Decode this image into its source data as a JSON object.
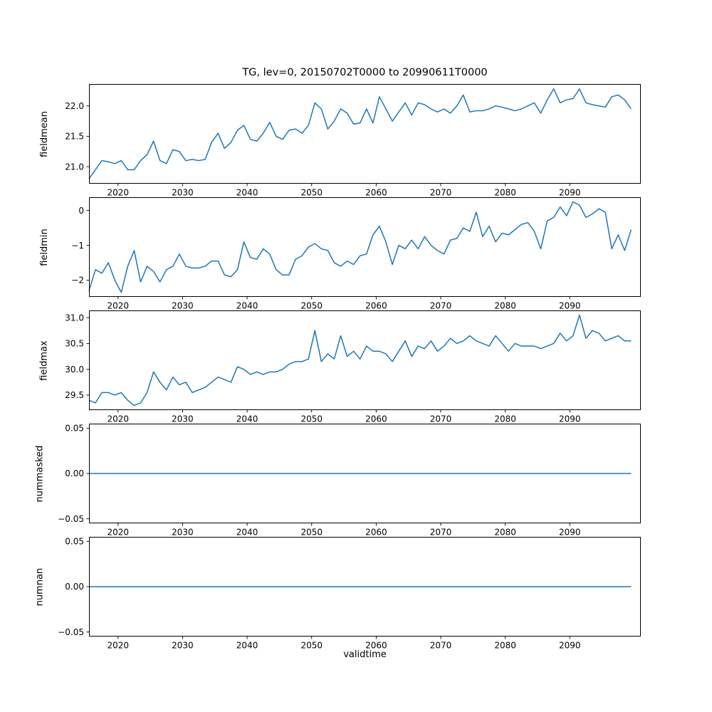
{
  "title": "TG, lev=0, 20150702T0000 to 20990611T0000",
  "xlabel": "validtime",
  "chart_data": {
    "type": "line",
    "title": "TG, lev=0, 20150702T0000 to 20990611T0000",
    "xlabel": "validtime",
    "line_color": "#1f77b4",
    "grid": false,
    "legend": "none",
    "x_start_year": 2015.5,
    "x_step_years": 1,
    "n_points": 85,
    "xlim": [
      2015.5,
      2101.0
    ],
    "xticks": [
      {
        "value": 2020,
        "label": "2020"
      },
      {
        "value": 2030,
        "label": "2030"
      },
      {
        "value": 2040,
        "label": "2040"
      },
      {
        "value": 2050,
        "label": "2050"
      },
      {
        "value": 2060,
        "label": "2060"
      },
      {
        "value": 2070,
        "label": "2070"
      },
      {
        "value": 2080,
        "label": "2080"
      },
      {
        "value": 2090,
        "label": "2090"
      }
    ],
    "subplots": [
      {
        "name": "fieldmean",
        "ylabel": "fieldmean",
        "ylim": [
          20.72,
          22.36
        ],
        "yticks": [
          {
            "value": 21.0,
            "label": "21.0"
          },
          {
            "value": 21.5,
            "label": "21.5"
          },
          {
            "value": 22.0,
            "label": "22.0"
          }
        ],
        "values": [
          20.8,
          20.95,
          21.1,
          21.08,
          21.05,
          21.1,
          20.95,
          20.95,
          21.1,
          21.2,
          21.42,
          21.1,
          21.05,
          21.28,
          21.25,
          21.1,
          21.12,
          21.1,
          21.12,
          21.4,
          21.55,
          21.3,
          21.4,
          21.6,
          21.68,
          21.45,
          21.42,
          21.55,
          21.73,
          21.5,
          21.45,
          21.6,
          21.62,
          21.55,
          21.68,
          22.05,
          21.95,
          21.62,
          21.75,
          21.95,
          21.88,
          21.7,
          21.72,
          21.95,
          21.72,
          22.15,
          21.95,
          21.75,
          21.9,
          22.05,
          21.85,
          22.05,
          22.02,
          21.95,
          21.9,
          21.95,
          21.88,
          22.0,
          22.18,
          21.9,
          21.92,
          21.92,
          21.95,
          22.0,
          21.98,
          21.95,
          21.92,
          21.95,
          22.0,
          22.05,
          21.88,
          22.1,
          22.28,
          22.05,
          22.1,
          22.12,
          22.28,
          22.05,
          22.02,
          22.0,
          21.98,
          22.15,
          22.18,
          22.1,
          21.95
        ]
      },
      {
        "name": "fieldmin",
        "ylabel": "fieldmin",
        "ylim": [
          -2.48,
          0.38
        ],
        "yticks": [
          {
            "value": -2,
            "label": "−2"
          },
          {
            "value": -1,
            "label": "−1"
          },
          {
            "value": 0,
            "label": "0"
          }
        ],
        "values": [
          -2.3,
          -1.7,
          -1.8,
          -1.5,
          -2.0,
          -2.35,
          -1.6,
          -1.15,
          -2.05,
          -1.6,
          -1.75,
          -2.05,
          -1.7,
          -1.6,
          -1.25,
          -1.6,
          -1.65,
          -1.65,
          -1.6,
          -1.45,
          -1.45,
          -1.85,
          -1.9,
          -1.7,
          -0.9,
          -1.35,
          -1.4,
          -1.1,
          -1.25,
          -1.7,
          -1.85,
          -1.85,
          -1.4,
          -1.3,
          -1.05,
          -0.95,
          -1.1,
          -1.15,
          -1.5,
          -1.6,
          -1.45,
          -1.55,
          -1.3,
          -1.25,
          -0.7,
          -0.45,
          -0.9,
          -1.55,
          -1.0,
          -1.1,
          -0.85,
          -1.1,
          -0.75,
          -1.0,
          -1.15,
          -1.25,
          -0.85,
          -0.8,
          -0.5,
          -0.6,
          -0.05,
          -0.75,
          -0.45,
          -0.9,
          -0.65,
          -0.7,
          -0.55,
          -0.4,
          -0.35,
          -0.6,
          -1.1,
          -0.3,
          -0.2,
          0.1,
          -0.15,
          0.25,
          0.15,
          -0.2,
          -0.1,
          0.05,
          -0.05,
          -1.1,
          -0.7,
          -1.15,
          -0.55
        ]
      },
      {
        "name": "fieldmax",
        "ylabel": "fieldmax",
        "ylim": [
          29.21,
          31.14
        ],
        "yticks": [
          {
            "value": 29.5,
            "label": "29.5"
          },
          {
            "value": 30.0,
            "label": "30.0"
          },
          {
            "value": 30.5,
            "label": "30.5"
          },
          {
            "value": 31.0,
            "label": "31.0"
          }
        ],
        "values": [
          29.4,
          29.35,
          29.55,
          29.55,
          29.5,
          29.55,
          29.4,
          29.3,
          29.35,
          29.55,
          29.95,
          29.75,
          29.6,
          29.85,
          29.7,
          29.75,
          29.55,
          29.6,
          29.65,
          29.75,
          29.85,
          29.8,
          29.75,
          30.05,
          30.0,
          29.9,
          29.95,
          29.9,
          29.95,
          29.95,
          30.0,
          30.1,
          30.15,
          30.15,
          30.2,
          30.75,
          30.15,
          30.3,
          30.2,
          30.65,
          30.25,
          30.35,
          30.2,
          30.45,
          30.35,
          30.35,
          30.3,
          30.15,
          30.35,
          30.55,
          30.25,
          30.45,
          30.4,
          30.55,
          30.35,
          30.45,
          30.6,
          30.5,
          30.55,
          30.65,
          30.55,
          30.5,
          30.45,
          30.65,
          30.5,
          30.35,
          30.5,
          30.45,
          30.45,
          30.45,
          30.4,
          30.45,
          30.5,
          30.7,
          30.55,
          30.65,
          31.05,
          30.6,
          30.75,
          30.7,
          30.55,
          30.6,
          30.65,
          30.55,
          30.55
        ]
      },
      {
        "name": "nummasked",
        "ylabel": "nummasked",
        "ylim": [
          -0.055,
          0.055
        ],
        "yticks": [
          {
            "value": -0.05,
            "label": "−0.05"
          },
          {
            "value": 0.0,
            "label": "0.00"
          },
          {
            "value": 0.05,
            "label": "0.05"
          }
        ],
        "constant": 0.0
      },
      {
        "name": "numnan",
        "ylabel": "numnan",
        "ylim": [
          -0.055,
          0.055
        ],
        "yticks": [
          {
            "value": -0.05,
            "label": "−0.05"
          },
          {
            "value": 0.0,
            "label": "0.00"
          },
          {
            "value": 0.05,
            "label": "0.05"
          }
        ],
        "constant": 0.0
      }
    ]
  }
}
